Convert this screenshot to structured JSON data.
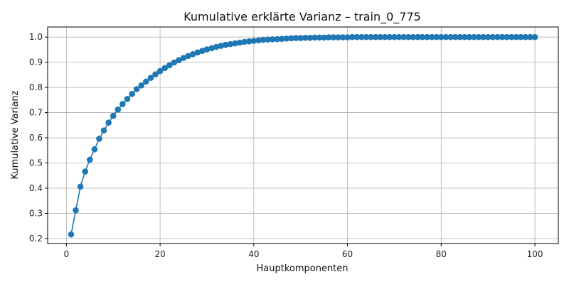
{
  "chart_data": {
    "type": "line",
    "title": "Kumulative erklärte Varianz – train_0_775",
    "xlabel": "Hauptkomponenten",
    "ylabel": "Kumulative Varianz",
    "xlim": [
      -4,
      105
    ],
    "ylim": [
      0.18,
      1.04
    ],
    "xticks": [
      0,
      20,
      40,
      60,
      80,
      100
    ],
    "yticks": [
      0.2,
      0.3,
      0.4,
      0.5,
      0.6,
      0.7,
      0.8,
      0.9,
      1.0
    ],
    "grid": true,
    "marker": "circle",
    "series": [
      {
        "color": "#1f77b4",
        "x": [
          1,
          2,
          3,
          4,
          5,
          6,
          7,
          8,
          9,
          10,
          11,
          12,
          13,
          14,
          15,
          16,
          17,
          18,
          19,
          20,
          21,
          22,
          23,
          24,
          25,
          26,
          27,
          28,
          29,
          30,
          31,
          32,
          33,
          34,
          35,
          36,
          37,
          38,
          39,
          40,
          41,
          42,
          43,
          44,
          45,
          46,
          47,
          48,
          49,
          50,
          51,
          52,
          53,
          54,
          55,
          56,
          57,
          58,
          59,
          60,
          61,
          62,
          63,
          64,
          65,
          66,
          67,
          68,
          69,
          70,
          71,
          72,
          73,
          74,
          75,
          76,
          77,
          78,
          79,
          80,
          81,
          82,
          83,
          84,
          85,
          86,
          87,
          88,
          89,
          90,
          91,
          92,
          93,
          94,
          95,
          96,
          97,
          98,
          99,
          100
        ],
        "y": [
          0.216,
          0.312,
          0.406,
          0.466,
          0.513,
          0.554,
          0.596,
          0.629,
          0.66,
          0.687,
          0.712,
          0.734,
          0.754,
          0.774,
          0.793,
          0.808,
          0.823,
          0.838,
          0.852,
          0.865,
          0.877,
          0.888,
          0.899,
          0.908,
          0.917,
          0.925,
          0.932,
          0.939,
          0.945,
          0.951,
          0.956,
          0.961,
          0.965,
          0.969,
          0.972,
          0.975,
          0.978,
          0.981,
          0.983,
          0.985,
          0.987,
          0.989,
          0.99,
          0.991,
          0.992,
          0.993,
          0.994,
          0.995,
          0.996,
          0.996,
          0.997,
          0.997,
          0.998,
          0.998,
          0.998,
          0.999,
          0.999,
          0.999,
          0.999,
          0.999,
          1.0,
          1.0,
          1.0,
          1.0,
          1.0,
          1.0,
          1.0,
          1.0,
          1.0,
          1.0,
          1.0,
          1.0,
          1.0,
          1.0,
          1.0,
          1.0,
          1.0,
          1.0,
          1.0,
          1.0,
          1.0,
          1.0,
          1.0,
          1.0,
          1.0,
          1.0,
          1.0,
          1.0,
          1.0,
          1.0,
          1.0,
          1.0,
          1.0,
          1.0,
          1.0,
          1.0,
          1.0,
          1.0,
          1.0,
          1.0
        ]
      }
    ]
  }
}
